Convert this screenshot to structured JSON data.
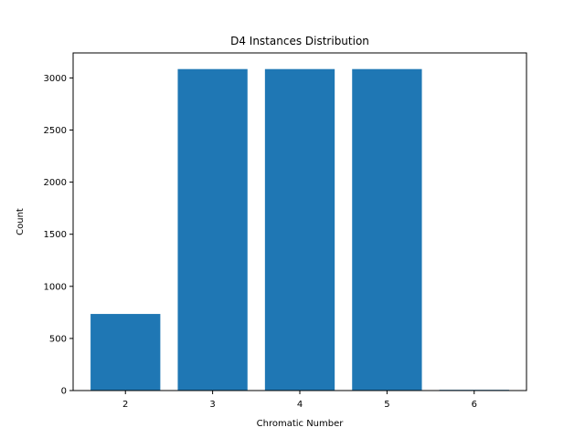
{
  "chart_data": {
    "type": "bar",
    "title": "D4 Instances Distribution",
    "xlabel": "Chromatic Number",
    "ylabel": "Count",
    "categories": [
      "2",
      "3",
      "4",
      "5",
      "6"
    ],
    "values": [
      735,
      3085,
      3085,
      3085,
      7
    ],
    "ylim": [
      0,
      3240
    ],
    "yticks": [
      0,
      500,
      1000,
      1500,
      2000,
      2500,
      3000
    ],
    "bar_color": "#1f77b4",
    "grid": false,
    "legend": "none"
  }
}
